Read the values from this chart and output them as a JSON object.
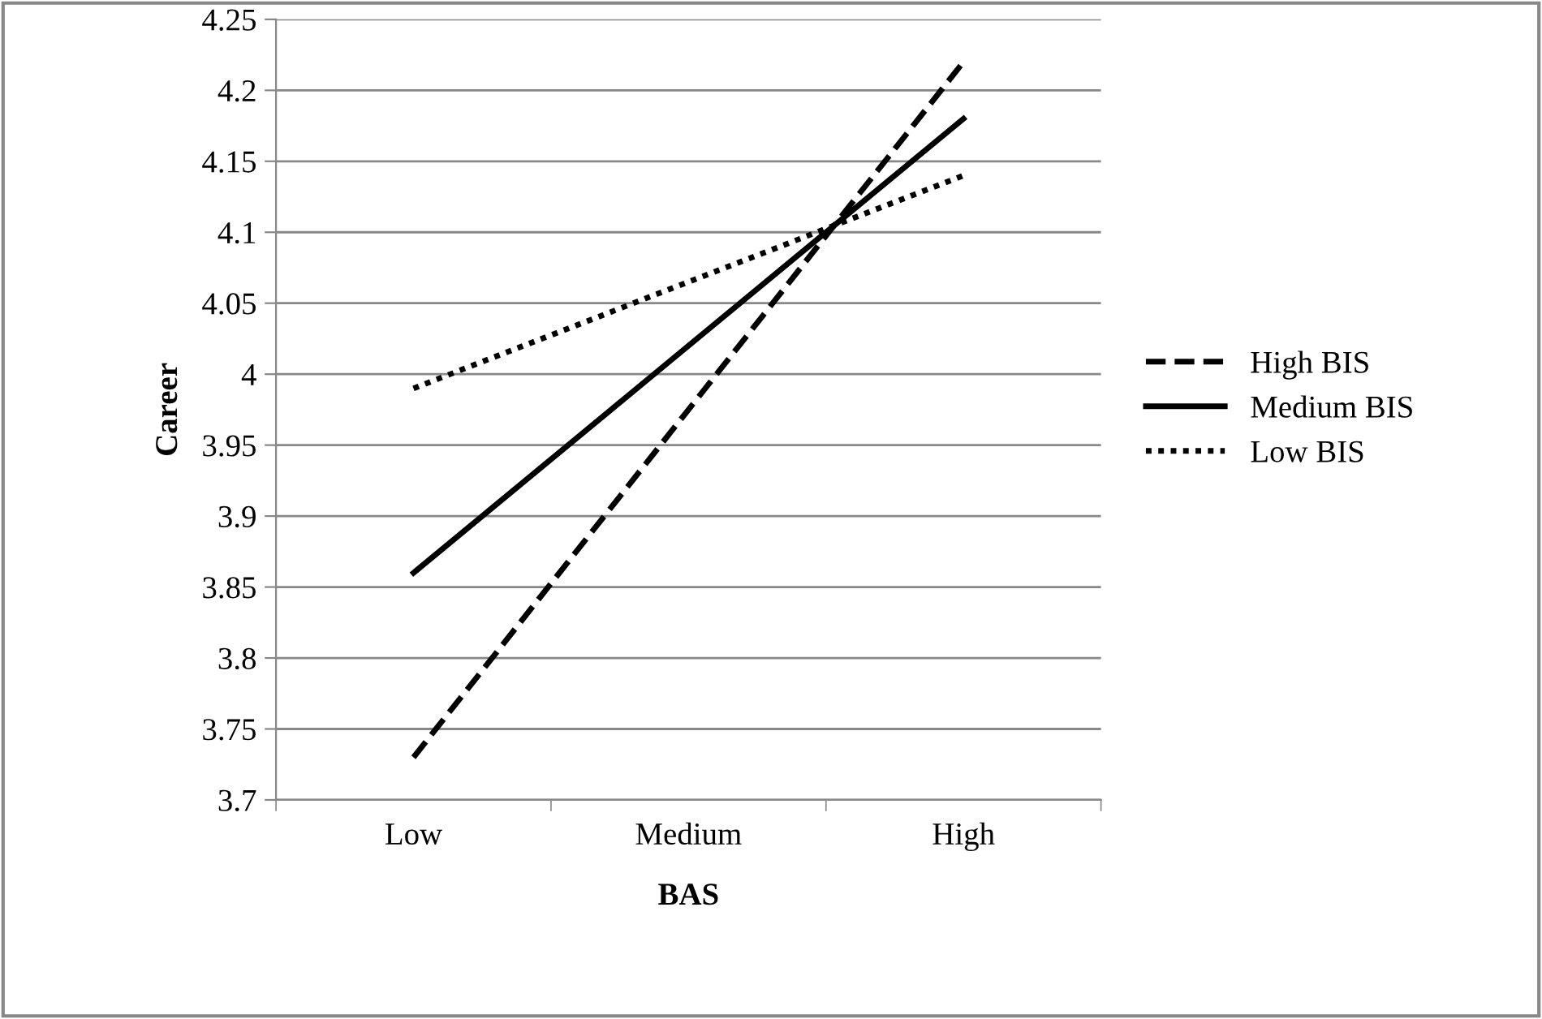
{
  "chart_data": {
    "type": "line",
    "xlabel": "BAS",
    "ylabel": "Career",
    "categories": [
      "Low",
      "Medium",
      "High"
    ],
    "series": [
      {
        "name": "High BIS",
        "color": "#000000",
        "line_style": "dashed",
        "values": [
          3.73,
          3.975,
          4.22
        ]
      },
      {
        "name": "Medium BIS",
        "color": "#000000",
        "line_style": "solid",
        "values": [
          3.86,
          4.02,
          4.18
        ]
      },
      {
        "name": "Low BIS",
        "color": "#000000",
        "line_style": "dotted",
        "values": [
          3.99,
          4.065,
          4.14
        ]
      }
    ],
    "ylim": [
      3.7,
      4.25
    ],
    "yticks": [
      3.7,
      3.75,
      3.8,
      3.85,
      3.9,
      3.95,
      4,
      4.05,
      4.1,
      4.15,
      4.2,
      4.25
    ],
    "grid": "y",
    "legend": "right",
    "marker": "none"
  }
}
